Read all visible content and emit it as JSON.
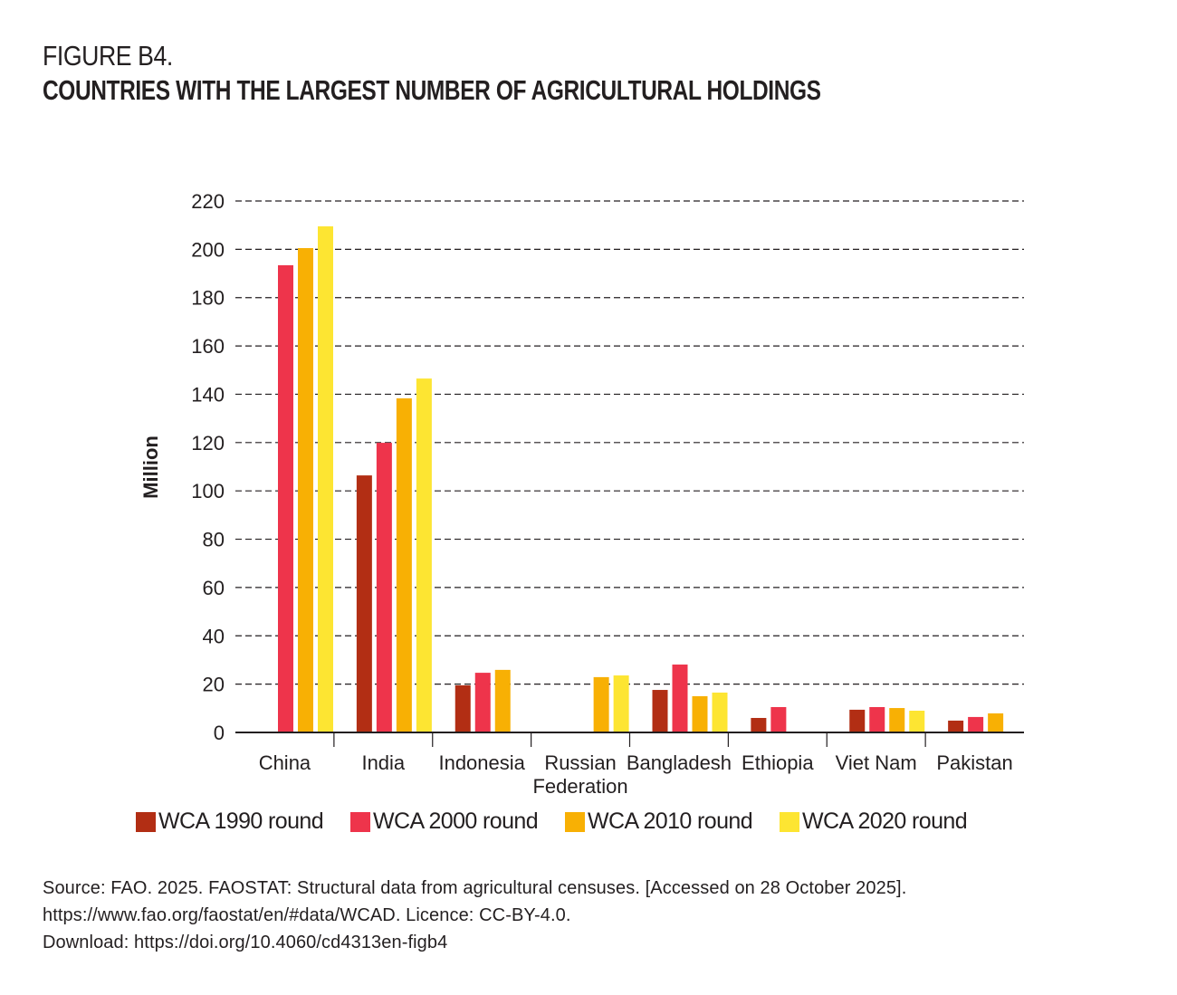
{
  "header": {
    "figure_label": "FIGURE B4.",
    "title": "COUNTRIES WITH THE LARGEST NUMBER OF AGRICULTURAL HOLDINGS"
  },
  "chart_data": {
    "type": "bar",
    "title": "COUNTRIES WITH THE LARGEST NUMBER OF AGRICULTURAL HOLDINGS",
    "xlabel": "",
    "ylabel": "Million",
    "ylim": [
      0,
      220
    ],
    "yticks": [
      0,
      20,
      40,
      60,
      80,
      100,
      120,
      140,
      160,
      180,
      200,
      220
    ],
    "grid": true,
    "legend_position": "bottom",
    "categories": [
      "China",
      "India",
      "Indonesia",
      "Russian Federation",
      "Bangladesh",
      "Ethiopia",
      "Viet Nam",
      "Pakistan"
    ],
    "category_label_lines": [
      [
        "China"
      ],
      [
        "India"
      ],
      [
        "Indonesia"
      ],
      [
        "Russian",
        "Federation"
      ],
      [
        "Bangladesh"
      ],
      [
        "Ethiopia"
      ],
      [
        "Viet Nam"
      ],
      [
        "Pakistan"
      ]
    ],
    "series": [
      {
        "name": "WCA 1990 round",
        "color": "#b22e14",
        "values": [
          null,
          106.4,
          19.5,
          null,
          17.6,
          6.0,
          9.4,
          4.9
        ]
      },
      {
        "name": "WCA 2000 round",
        "color": "#ee344b",
        "values": [
          193.4,
          119.9,
          24.7,
          null,
          28.1,
          10.5,
          10.5,
          6.4
        ]
      },
      {
        "name": "WCA 2010 round",
        "color": "#f8b004",
        "values": [
          200.5,
          138.3,
          25.9,
          22.9,
          15.0,
          null,
          10.1,
          7.9
        ]
      },
      {
        "name": "WCA 2020 round",
        "color": "#fde532",
        "values": [
          209.5,
          146.5,
          null,
          23.6,
          16.5,
          null,
          9.0,
          null
        ]
      }
    ]
  },
  "source": {
    "line1": "Source: FAO. 2025. FAOSTAT: Structural data from agricultural censuses. [Accessed on 28 October 2025].",
    "line2": "https://www.fao.org/faostat/en/#data/WCAD. Licence: CC-BY-4.0.",
    "line3": "Download: https://doi.org/10.4060/cd4313en-figb4"
  }
}
